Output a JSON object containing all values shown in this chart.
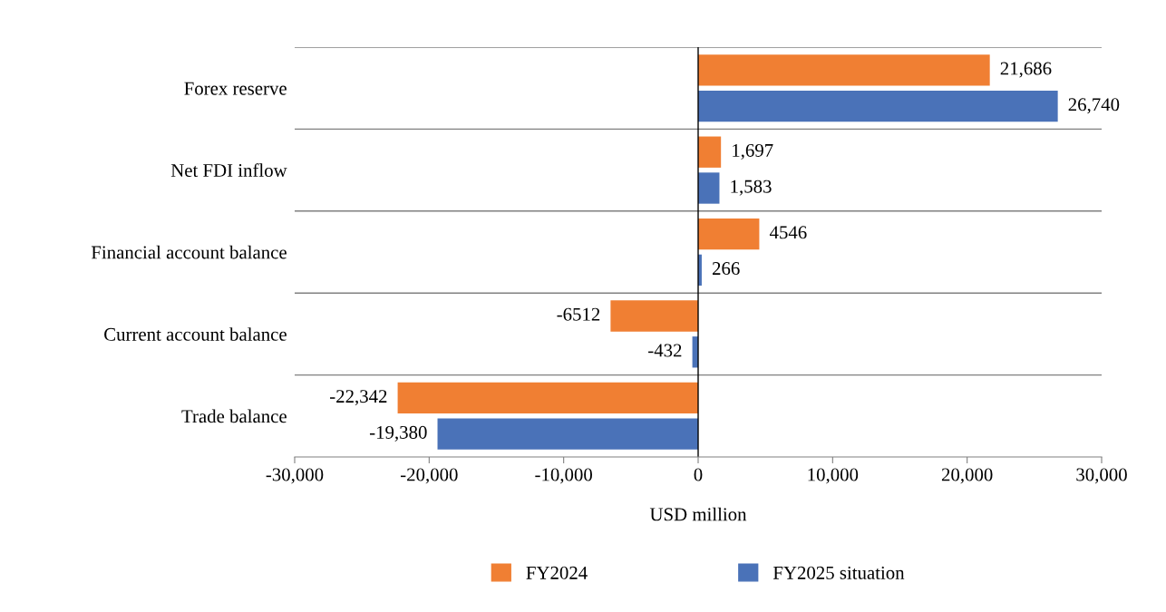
{
  "chart_data": {
    "type": "bar",
    "orientation": "horizontal",
    "xlabel": "USD million",
    "categories": [
      "Forex reserve",
      "Net FDI inflow",
      "Financial account balance",
      "Current account balance",
      "Trade balance"
    ],
    "series": [
      {
        "name": "FY2024",
        "color": "#f07f33",
        "values": [
          21686,
          1697,
          4546,
          -6512,
          -22342
        ],
        "value_labels": [
          "21,686",
          "1,697",
          "4546",
          "-6512",
          "-22,342"
        ]
      },
      {
        "name": "FY2025 situation",
        "color": "#4a72b8",
        "values": [
          26740,
          1583,
          266,
          -432,
          -19380
        ],
        "value_labels": [
          "26,740",
          "1,583",
          "266",
          "-432",
          "-19,380"
        ]
      }
    ],
    "xlim": [
      -30000,
      30000
    ],
    "xticks": [
      {
        "value": -30000,
        "label": "-30,000"
      },
      {
        "value": -20000,
        "label": "-20,000"
      },
      {
        "value": -10000,
        "label": "-10,000"
      },
      0,
      {
        "value": 10000,
        "label": "10,000"
      },
      {
        "value": 20000,
        "label": "20,000"
      },
      {
        "value": 30000,
        "label": "30,000"
      }
    ],
    "grid": "y",
    "legend": "bottom"
  }
}
